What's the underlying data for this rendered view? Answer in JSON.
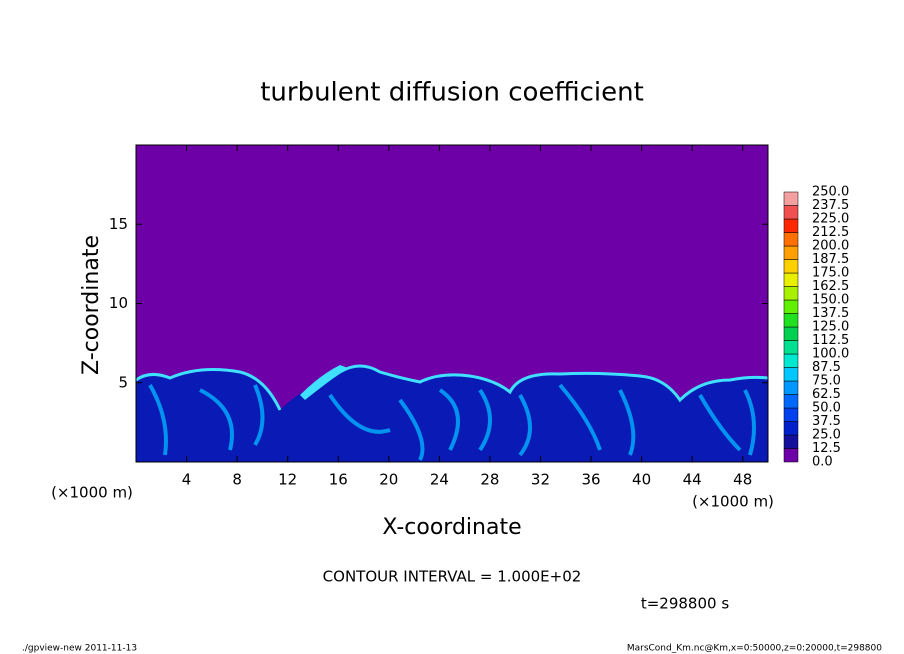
{
  "chart_data": {
    "type": "contour",
    "title": "turbulent diffusion coefficient",
    "x_label": "X-coordinate",
    "y_label": "Z-coordinate",
    "x_unit": "(×1000 m)",
    "y_unit": "(×1000 m)",
    "xlim": [
      0,
      50
    ],
    "ylim": [
      0,
      20
    ],
    "xticks": [
      4,
      8,
      12,
      16,
      20,
      24,
      28,
      32,
      36,
      40,
      44,
      48
    ],
    "yticks": [
      5,
      10,
      15
    ],
    "levels": [
      {
        "value": 0,
        "label": "0.0"
      },
      12.5,
      {
        "value": 25,
        "label": "25.0"
      },
      37.5,
      {
        "value": 50,
        "label": "50.0"
      },
      62.5,
      {
        "value": 75,
        "label": "75.0"
      },
      87.5,
      {
        "value": 100,
        "label": "100.0"
      },
      112.5,
      {
        "value": 125,
        "label": "125.0"
      },
      137.5,
      {
        "value": 150,
        "label": "150.0"
      },
      162.5,
      {
        "value": 175,
        "label": "175.0"
      },
      187.5,
      {
        "value": 200,
        "label": "200.0"
      },
      212.5,
      {
        "value": 225,
        "label": "225.0"
      },
      237.5,
      {
        "value": 250,
        "label": "250.0"
      }
    ],
    "colors": [
      "#6e00a8",
      "#14109c",
      "#0020cc",
      "#0040ee",
      "#0068ff",
      "#0098ff",
      "#00c8ff",
      "#00e8d0",
      "#00e090",
      "#00d050",
      "#20e020",
      "#60f000",
      "#a8f000",
      "#e8f000",
      "#ffd000",
      "#ffa000",
      "#ff7000",
      "#ff2800",
      "#f05050",
      "#f4a0a0"
    ],
    "contour_interval": "CONTOUR INTERVAL = 1.000E+02",
    "time_label": "t=298800 s",
    "footer_left": "./gpview-new   2011-11-13",
    "footer_right": "MarsCond_Km.nc@Km,x=0:50000,z=0:20000,t=298800"
  }
}
